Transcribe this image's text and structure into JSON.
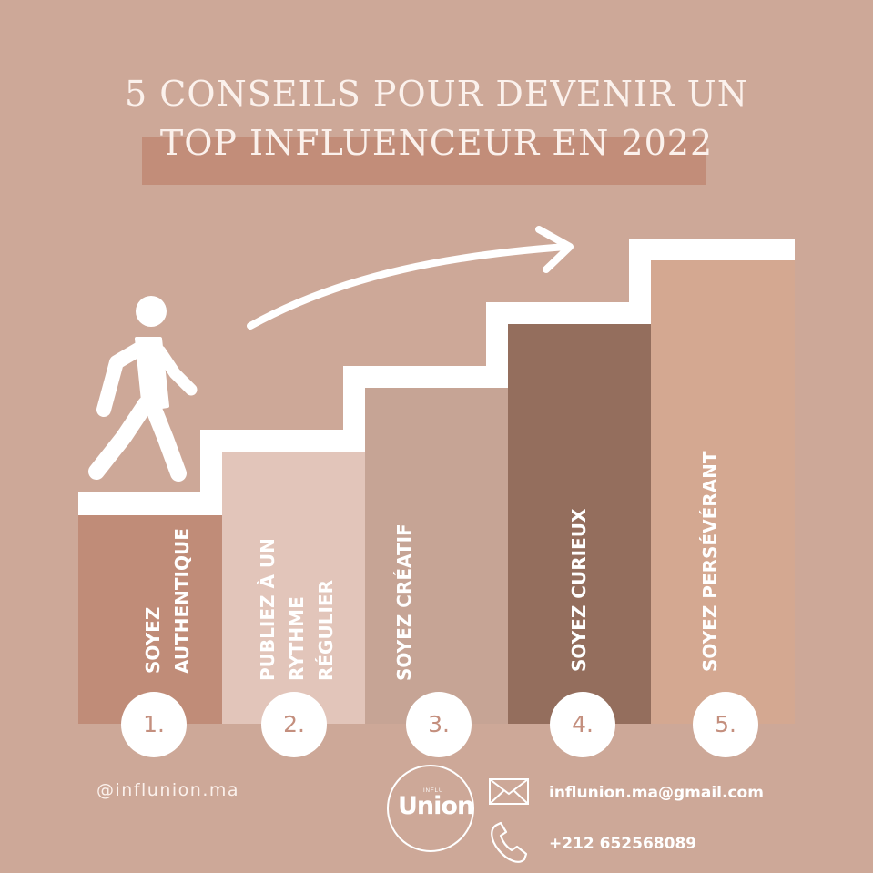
{
  "title": {
    "line1": "5 CONSEILS POUR DEVENIR UN",
    "line2": "TOP INFLUENCEUR EN 2022"
  },
  "steps": [
    {
      "number": "1.",
      "label": "SOYEZ\nAUTHENTIQUE",
      "color": "#c08c78"
    },
    {
      "number": "2.",
      "label": "PUBLIEZ À UN\nRYTHME\nRÉGULIER",
      "color": "#e2c5ba"
    },
    {
      "number": "3.",
      "label": "SOYEZ CRÉATIF",
      "color": "#c6a495"
    },
    {
      "number": "4.",
      "label": "SOYEZ CURIEUX",
      "color": "#946e5d"
    },
    {
      "number": "5.",
      "label": "SOYEZ PERSÉVÉRANT",
      "color": "#d4a891"
    }
  ],
  "footer": {
    "handle": "@influnion.ma",
    "logo_small": "INFLU",
    "logo_main": "Union",
    "email": "influnion.ma@gmail.com",
    "phone": "+212 652568089"
  },
  "icons": {
    "person": "walking-person-icon",
    "arrow": "curved-arrow-icon",
    "email": "envelope-icon",
    "phone": "phone-icon"
  },
  "colors": {
    "background": "#cda898",
    "title_band": "#c28d79",
    "text_light": "#fbf1ec"
  }
}
